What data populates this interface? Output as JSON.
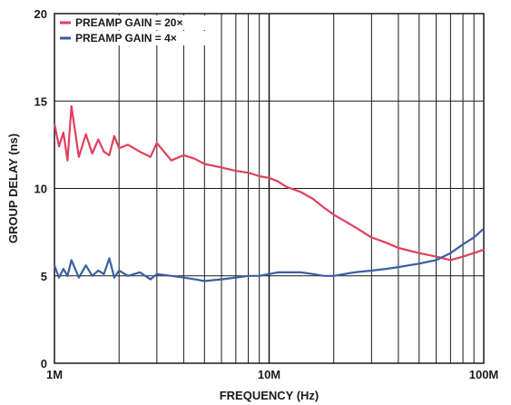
{
  "chart_data": {
    "type": "line",
    "title": "",
    "xlabel": "FREQUENCY (Hz)",
    "ylabel": "GROUP DELAY (ns)",
    "xscale": "log",
    "xlim": [
      1000000,
      100000000
    ],
    "ylim": [
      0,
      20
    ],
    "x_ticks": [
      {
        "value": 1000000,
        "label": "1M"
      },
      {
        "value": 10000000,
        "label": "10M"
      },
      {
        "value": 100000000,
        "label": "100M"
      }
    ],
    "y_ticks": [
      {
        "value": 0,
        "label": "0"
      },
      {
        "value": 5,
        "label": "5"
      },
      {
        "value": 10,
        "label": "10"
      },
      {
        "value": 15,
        "label": "15"
      },
      {
        "value": 20,
        "label": "20"
      }
    ],
    "grid": true,
    "legend_position": "top-left",
    "series": [
      {
        "name": "PREAMP GAIN = 20×",
        "color": "#e0405e",
        "x": [
          1000000,
          1050000,
          1100000,
          1150000,
          1200000,
          1300000,
          1400000,
          1500000,
          1600000,
          1700000,
          1800000,
          1900000,
          2000000,
          2200000,
          2500000,
          2800000,
          3000000,
          3500000,
          4000000,
          4500000,
          5000000,
          6000000,
          7000000,
          8000000,
          9000000,
          10000000,
          11000000,
          12000000,
          14000000,
          16000000,
          18000000,
          20000000,
          25000000,
          30000000,
          35000000,
          40000000,
          50000000,
          60000000,
          70000000,
          80000000,
          90000000,
          100000000
        ],
        "y": [
          13.7,
          12.4,
          13.2,
          11.6,
          14.7,
          11.8,
          13.1,
          12.0,
          12.8,
          12.1,
          11.9,
          13.0,
          12.3,
          12.5,
          12.1,
          11.8,
          12.6,
          11.6,
          11.9,
          11.7,
          11.4,
          11.2,
          11.0,
          10.9,
          10.7,
          10.6,
          10.4,
          10.1,
          9.8,
          9.4,
          8.9,
          8.5,
          7.8,
          7.2,
          6.9,
          6.6,
          6.3,
          6.1,
          5.9,
          6.1,
          6.3,
          6.5
        ]
      },
      {
        "name": "PREAMP GAIN = 4×",
        "color": "#3a5fa0",
        "x": [
          1000000,
          1050000,
          1100000,
          1150000,
          1200000,
          1300000,
          1400000,
          1500000,
          1600000,
          1700000,
          1800000,
          1900000,
          2000000,
          2200000,
          2500000,
          2800000,
          3000000,
          3500000,
          4000000,
          4500000,
          5000000,
          6000000,
          7000000,
          8000000,
          9000000,
          10000000,
          11000000,
          12000000,
          14000000,
          16000000,
          18000000,
          20000000,
          25000000,
          30000000,
          35000000,
          40000000,
          50000000,
          60000000,
          70000000,
          80000000,
          90000000,
          100000000
        ],
        "y": [
          5.6,
          4.9,
          5.4,
          5.0,
          5.9,
          4.9,
          5.6,
          5.0,
          5.3,
          5.1,
          6.0,
          4.9,
          5.3,
          5.0,
          5.2,
          4.8,
          5.1,
          5.0,
          4.9,
          4.8,
          4.7,
          4.8,
          4.9,
          5.0,
          5.0,
          5.1,
          5.2,
          5.2,
          5.2,
          5.1,
          5.0,
          5.0,
          5.2,
          5.3,
          5.4,
          5.5,
          5.7,
          5.9,
          6.3,
          6.8,
          7.2,
          7.7
        ]
      }
    ]
  }
}
